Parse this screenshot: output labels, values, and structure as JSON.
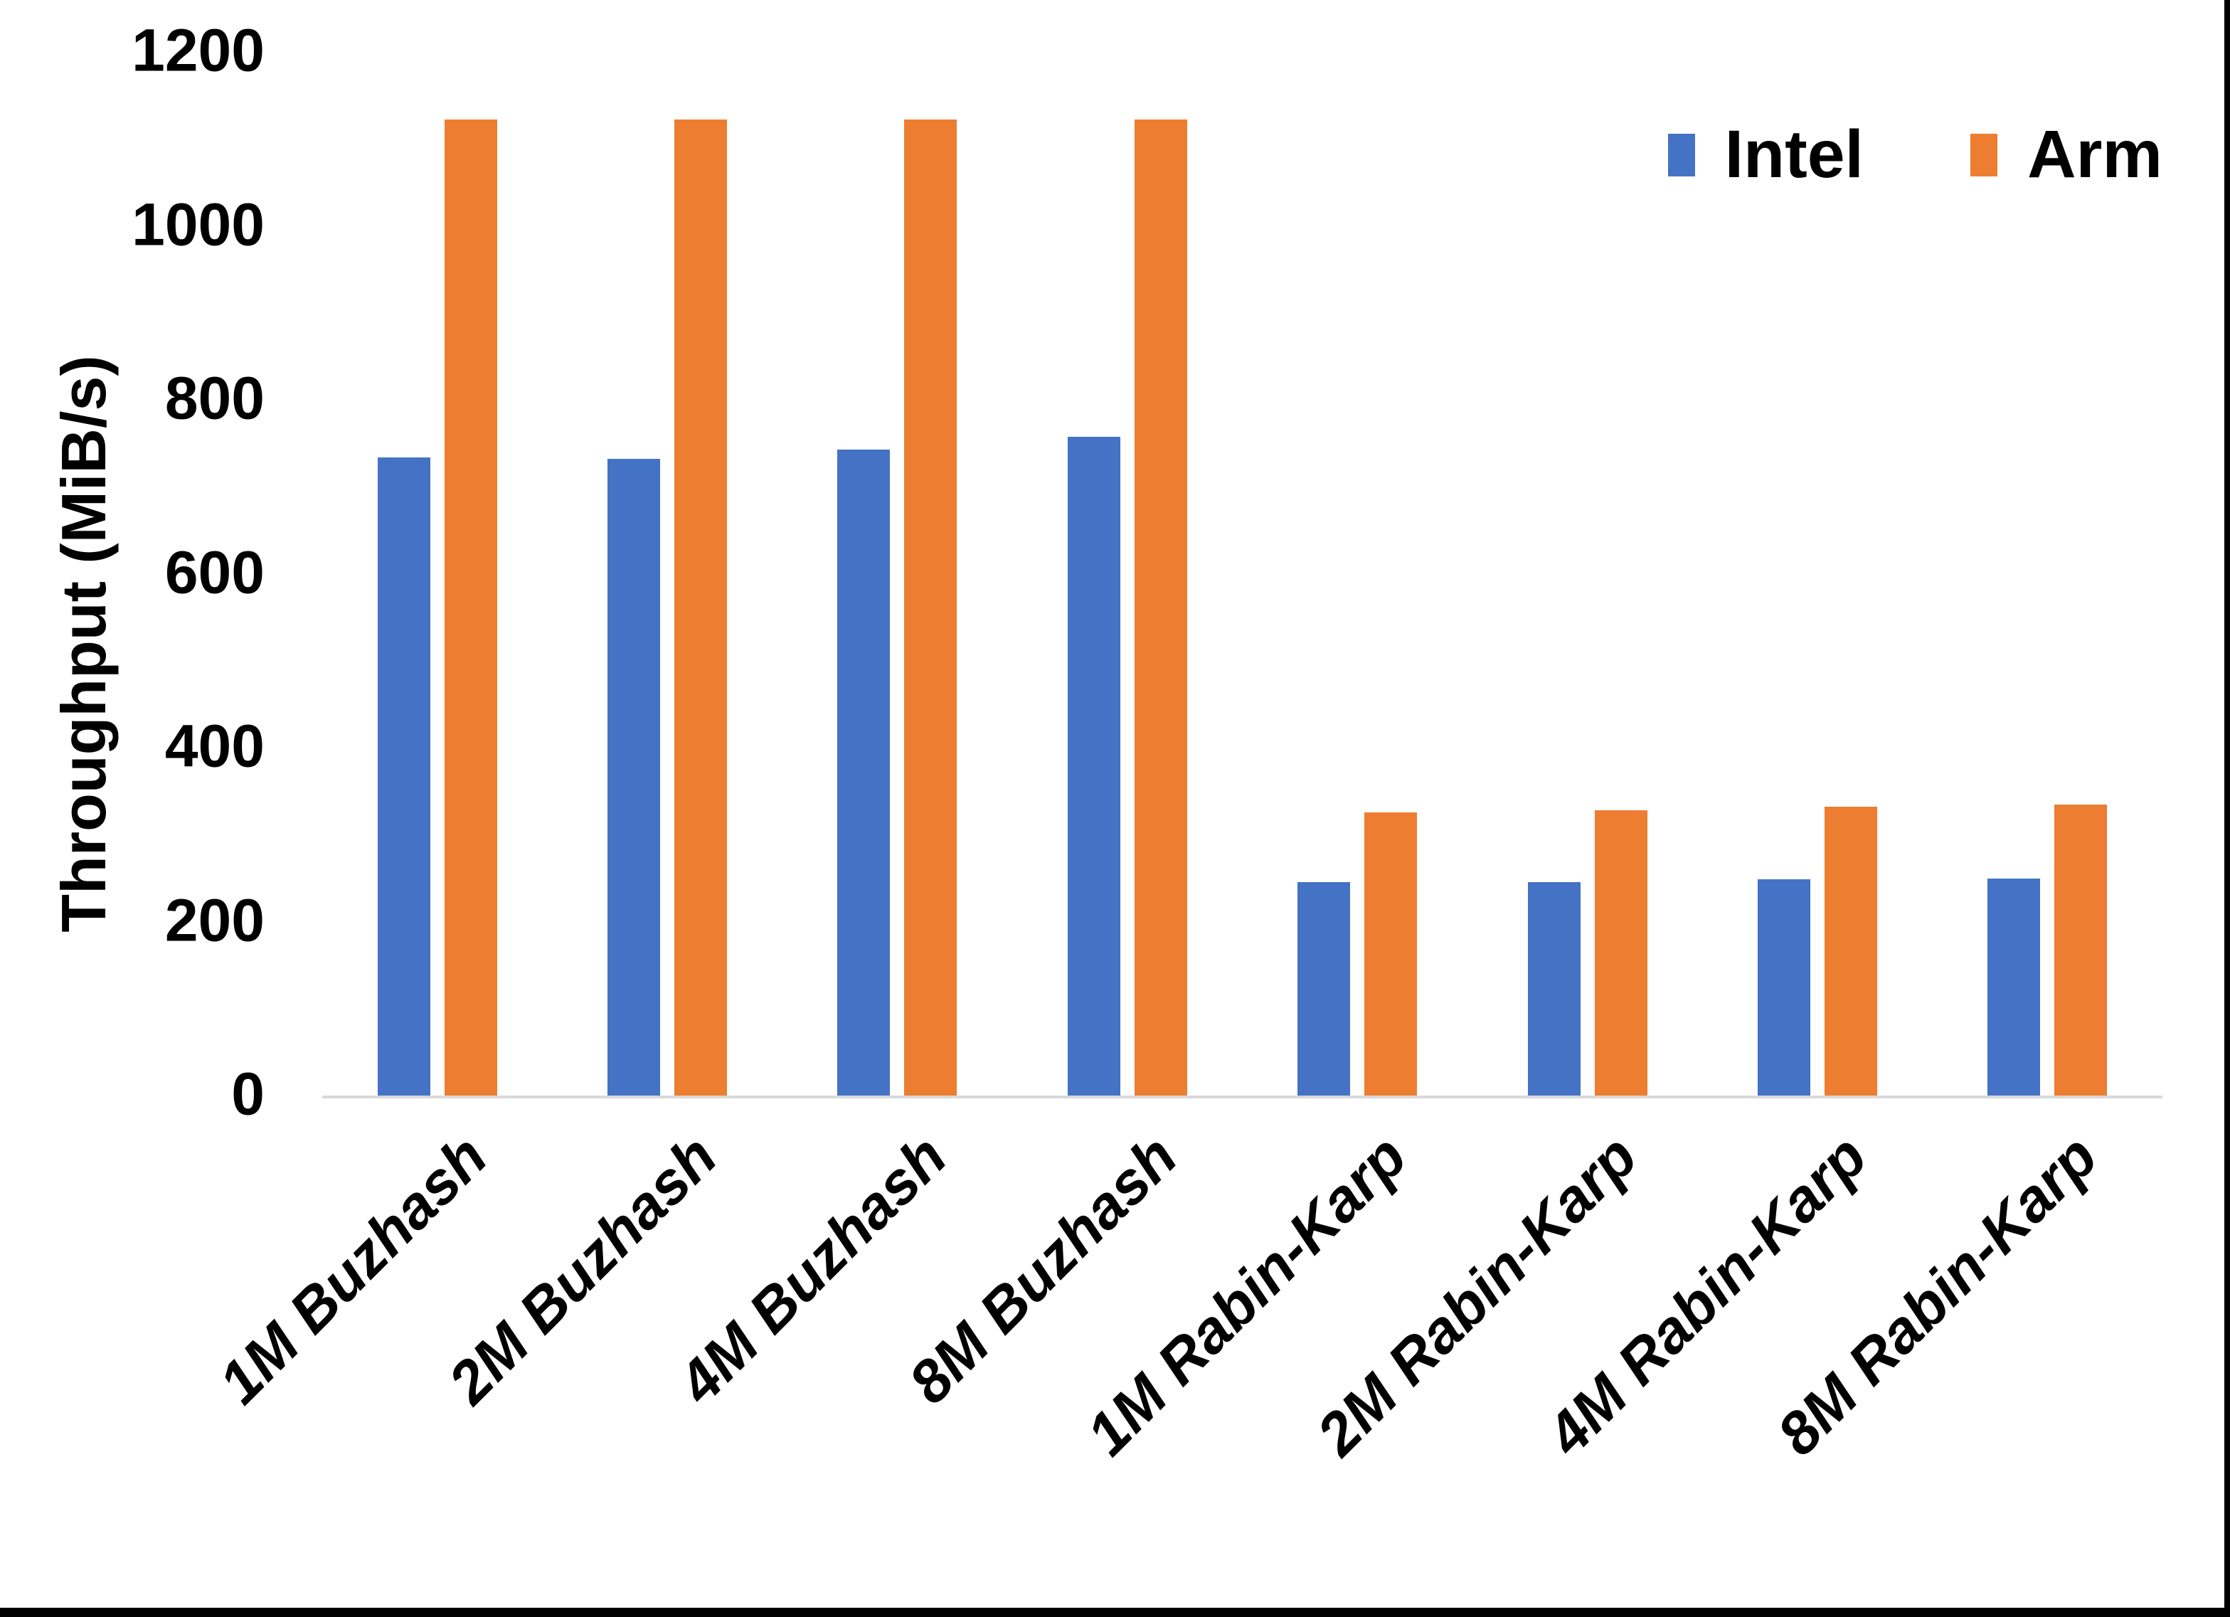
{
  "page": {
    "background": "#ffffff",
    "edge_border_color": "#000000"
  },
  "chart_data": {
    "type": "bar",
    "title": "",
    "xlabel": "",
    "ylabel": "Throughput (MiB/s)",
    "categories": [
      "1M Buzhash",
      "2M Buzhash",
      "4M Buzhash",
      "8M Buzhash",
      "1M Rabin-Karp",
      "2M Rabin-Karp",
      "4M Rabin-Karp",
      "8M Rabin-Karp"
    ],
    "series": [
      {
        "name": "Intel",
        "color": "#4472C4",
        "values": [
          735,
          734,
          744,
          759,
          247,
          247,
          250,
          251
        ]
      },
      {
        "name": "Arm",
        "color": "#ED7D31",
        "values": [
          1124,
          1124,
          1124,
          1124,
          327,
          330,
          334,
          336
        ]
      }
    ],
    "ylim": [
      0,
      1200
    ],
    "yticks": [
      0,
      200,
      400,
      600,
      800,
      1000,
      1200
    ],
    "grid": false,
    "legend_position": "top-right",
    "x_label_rotation_deg": -45,
    "axis_line_color": "#D9D9D9",
    "units": "MiB/s"
  }
}
